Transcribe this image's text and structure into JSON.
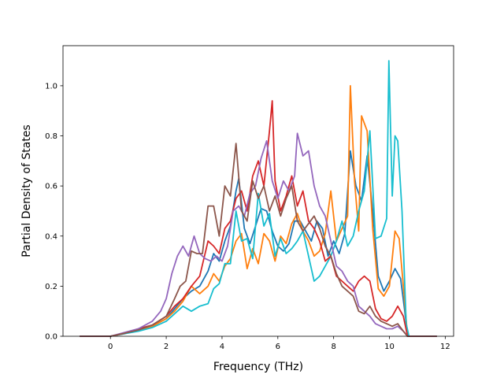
{
  "chart_data": {
    "type": "line",
    "title": "",
    "xlabel": "Frequency (THz)",
    "ylabel": "Partial Density of States",
    "xlim": [
      -1.7,
      12.3
    ],
    "ylim": [
      0.0,
      1.16
    ],
    "xticks": [
      0,
      2,
      4,
      6,
      8,
      10,
      12
    ],
    "xtick_labels": [
      "0",
      "2",
      "4",
      "6",
      "8",
      "10",
      "12"
    ],
    "yticks": [
      0.0,
      0.2,
      0.4,
      0.6,
      0.8,
      1.0
    ],
    "ytick_labels": [
      "0.0",
      "0.2",
      "0.4",
      "0.6",
      "0.8",
      "1.0"
    ],
    "grid": false,
    "legend": "none",
    "series": [
      {
        "color": "#1f77b4",
        "points": [
          [
            -1.1,
            0
          ],
          [
            0,
            0
          ],
          [
            0.5,
            0.01
          ],
          [
            1,
            0.025
          ],
          [
            1.5,
            0.04
          ],
          [
            2,
            0.07
          ],
          [
            2.3,
            0.11
          ],
          [
            2.6,
            0.15
          ],
          [
            2.9,
            0.18
          ],
          [
            3.2,
            0.2
          ],
          [
            3.5,
            0.26
          ],
          [
            3.7,
            0.33
          ],
          [
            3.9,
            0.3
          ],
          [
            4.1,
            0.38
          ],
          [
            4.3,
            0.44
          ],
          [
            4.5,
            0.58
          ],
          [
            4.6,
            0.63
          ],
          [
            4.8,
            0.43
          ],
          [
            5.0,
            0.37
          ],
          [
            5.2,
            0.44
          ],
          [
            5.4,
            0.51
          ],
          [
            5.6,
            0.5
          ],
          [
            5.8,
            0.42
          ],
          [
            6.0,
            0.36
          ],
          [
            6.2,
            0.34
          ],
          [
            6.4,
            0.37
          ],
          [
            6.6,
            0.46
          ],
          [
            6.8,
            0.46
          ],
          [
            7.0,
            0.42
          ],
          [
            7.2,
            0.38
          ],
          [
            7.4,
            0.46
          ],
          [
            7.6,
            0.43
          ],
          [
            7.8,
            0.32
          ],
          [
            8.0,
            0.38
          ],
          [
            8.2,
            0.33
          ],
          [
            8.4,
            0.41
          ],
          [
            8.6,
            0.74
          ],
          [
            8.8,
            0.6
          ],
          [
            9.0,
            0.54
          ],
          [
            9.2,
            0.72
          ],
          [
            9.4,
            0.5
          ],
          [
            9.6,
            0.24
          ],
          [
            9.8,
            0.18
          ],
          [
            10.0,
            0.22
          ],
          [
            10.2,
            0.27
          ],
          [
            10.4,
            0.23
          ],
          [
            10.55,
            0.1
          ],
          [
            10.65,
            0.0
          ],
          [
            11.7,
            0
          ]
        ]
      },
      {
        "color": "#ff7f0e",
        "points": [
          [
            -1.1,
            0
          ],
          [
            0,
            0
          ],
          [
            0.5,
            0.01
          ],
          [
            1,
            0.025
          ],
          [
            1.5,
            0.04
          ],
          [
            2,
            0.07
          ],
          [
            2.3,
            0.1
          ],
          [
            2.6,
            0.14
          ],
          [
            2.9,
            0.2
          ],
          [
            3.2,
            0.17
          ],
          [
            3.5,
            0.2
          ],
          [
            3.7,
            0.25
          ],
          [
            3.9,
            0.22
          ],
          [
            4.1,
            0.28
          ],
          [
            4.3,
            0.31
          ],
          [
            4.5,
            0.38
          ],
          [
            4.7,
            0.41
          ],
          [
            4.9,
            0.27
          ],
          [
            5.1,
            0.35
          ],
          [
            5.3,
            0.29
          ],
          [
            5.5,
            0.41
          ],
          [
            5.7,
            0.38
          ],
          [
            5.9,
            0.3
          ],
          [
            6.1,
            0.4
          ],
          [
            6.3,
            0.37
          ],
          [
            6.5,
            0.45
          ],
          [
            6.7,
            0.49
          ],
          [
            6.9,
            0.42
          ],
          [
            7.1,
            0.38
          ],
          [
            7.3,
            0.32
          ],
          [
            7.5,
            0.34
          ],
          [
            7.7,
            0.41
          ],
          [
            7.9,
            0.58
          ],
          [
            8.1,
            0.38
          ],
          [
            8.3,
            0.43
          ],
          [
            8.5,
            0.48
          ],
          [
            8.6,
            1.0
          ],
          [
            8.75,
            0.62
          ],
          [
            8.9,
            0.42
          ],
          [
            9.0,
            0.88
          ],
          [
            9.2,
            0.82
          ],
          [
            9.4,
            0.43
          ],
          [
            9.6,
            0.19
          ],
          [
            9.8,
            0.16
          ],
          [
            10.0,
            0.2
          ],
          [
            10.2,
            0.42
          ],
          [
            10.35,
            0.39
          ],
          [
            10.5,
            0.2
          ],
          [
            10.65,
            0.0
          ],
          [
            11.7,
            0
          ]
        ]
      },
      {
        "color": "#17becf",
        "points": [
          [
            -1.1,
            0
          ],
          [
            0,
            0
          ],
          [
            0.5,
            0.01
          ],
          [
            1,
            0.02
          ],
          [
            1.5,
            0.035
          ],
          [
            2,
            0.06
          ],
          [
            2.3,
            0.09
          ],
          [
            2.6,
            0.12
          ],
          [
            2.9,
            0.1
          ],
          [
            3.2,
            0.12
          ],
          [
            3.5,
            0.13
          ],
          [
            3.7,
            0.19
          ],
          [
            3.9,
            0.21
          ],
          [
            4.1,
            0.29
          ],
          [
            4.3,
            0.29
          ],
          [
            4.5,
            0.5
          ],
          [
            4.7,
            0.38
          ],
          [
            4.9,
            0.39
          ],
          [
            5.1,
            0.31
          ],
          [
            5.3,
            0.57
          ],
          [
            5.5,
            0.44
          ],
          [
            5.7,
            0.49
          ],
          [
            5.9,
            0.32
          ],
          [
            6.1,
            0.39
          ],
          [
            6.3,
            0.33
          ],
          [
            6.5,
            0.35
          ],
          [
            6.7,
            0.38
          ],
          [
            6.9,
            0.42
          ],
          [
            7.1,
            0.32
          ],
          [
            7.3,
            0.22
          ],
          [
            7.5,
            0.24
          ],
          [
            7.7,
            0.28
          ],
          [
            7.9,
            0.32
          ],
          [
            8.1,
            0.38
          ],
          [
            8.3,
            0.46
          ],
          [
            8.5,
            0.36
          ],
          [
            8.7,
            0.4
          ],
          [
            8.9,
            0.5
          ],
          [
            9.1,
            0.58
          ],
          [
            9.3,
            0.82
          ],
          [
            9.5,
            0.39
          ],
          [
            9.7,
            0.4
          ],
          [
            9.9,
            0.47
          ],
          [
            9.98,
            1.1
          ],
          [
            10.1,
            0.56
          ],
          [
            10.2,
            0.8
          ],
          [
            10.3,
            0.78
          ],
          [
            10.45,
            0.5
          ],
          [
            10.6,
            0.05
          ],
          [
            10.7,
            0.0
          ],
          [
            11.7,
            0
          ]
        ]
      },
      {
        "color": "#d62728",
        "points": [
          [
            -1.1,
            0
          ],
          [
            0,
            0
          ],
          [
            0.5,
            0.012
          ],
          [
            1,
            0.03
          ],
          [
            1.5,
            0.045
          ],
          [
            2,
            0.08
          ],
          [
            2.3,
            0.12
          ],
          [
            2.6,
            0.15
          ],
          [
            2.9,
            0.2
          ],
          [
            3.2,
            0.24
          ],
          [
            3.5,
            0.38
          ],
          [
            3.7,
            0.36
          ],
          [
            3.9,
            0.33
          ],
          [
            4.1,
            0.43
          ],
          [
            4.3,
            0.46
          ],
          [
            4.5,
            0.55
          ],
          [
            4.7,
            0.58
          ],
          [
            4.9,
            0.5
          ],
          [
            5.1,
            0.64
          ],
          [
            5.3,
            0.7
          ],
          [
            5.5,
            0.6
          ],
          [
            5.7,
            0.82
          ],
          [
            5.8,
            0.94
          ],
          [
            5.9,
            0.62
          ],
          [
            6.1,
            0.5
          ],
          [
            6.3,
            0.56
          ],
          [
            6.5,
            0.64
          ],
          [
            6.7,
            0.52
          ],
          [
            6.9,
            0.58
          ],
          [
            7.1,
            0.46
          ],
          [
            7.3,
            0.43
          ],
          [
            7.5,
            0.38
          ],
          [
            7.7,
            0.3
          ],
          [
            7.9,
            0.32
          ],
          [
            8.1,
            0.24
          ],
          [
            8.3,
            0.22
          ],
          [
            8.5,
            0.2
          ],
          [
            8.7,
            0.18
          ],
          [
            8.9,
            0.22
          ],
          [
            9.1,
            0.24
          ],
          [
            9.3,
            0.22
          ],
          [
            9.5,
            0.11
          ],
          [
            9.7,
            0.07
          ],
          [
            9.9,
            0.06
          ],
          [
            10.1,
            0.08
          ],
          [
            10.3,
            0.12
          ],
          [
            10.5,
            0.08
          ],
          [
            10.65,
            0.0
          ],
          [
            11.7,
            0
          ]
        ]
      },
      {
        "color": "#9467bd",
        "points": [
          [
            -1.1,
            0
          ],
          [
            0,
            0
          ],
          [
            0.5,
            0.015
          ],
          [
            1,
            0.03
          ],
          [
            1.5,
            0.06
          ],
          [
            1.8,
            0.1
          ],
          [
            2.0,
            0.15
          ],
          [
            2.2,
            0.25
          ],
          [
            2.4,
            0.32
          ],
          [
            2.6,
            0.36
          ],
          [
            2.8,
            0.32
          ],
          [
            3.0,
            0.4
          ],
          [
            3.2,
            0.33
          ],
          [
            3.4,
            0.31
          ],
          [
            3.6,
            0.3
          ],
          [
            3.8,
            0.32
          ],
          [
            4.0,
            0.3
          ],
          [
            4.2,
            0.36
          ],
          [
            4.4,
            0.5
          ],
          [
            4.6,
            0.52
          ],
          [
            4.8,
            0.48
          ],
          [
            5.0,
            0.57
          ],
          [
            5.2,
            0.6
          ],
          [
            5.4,
            0.71
          ],
          [
            5.6,
            0.78
          ],
          [
            5.8,
            0.62
          ],
          [
            6.0,
            0.55
          ],
          [
            6.2,
            0.62
          ],
          [
            6.4,
            0.58
          ],
          [
            6.6,
            0.64
          ],
          [
            6.7,
            0.81
          ],
          [
            6.9,
            0.72
          ],
          [
            7.1,
            0.74
          ],
          [
            7.3,
            0.6
          ],
          [
            7.5,
            0.52
          ],
          [
            7.7,
            0.48
          ],
          [
            7.9,
            0.38
          ],
          [
            8.1,
            0.28
          ],
          [
            8.3,
            0.26
          ],
          [
            8.5,
            0.22
          ],
          [
            8.7,
            0.2
          ],
          [
            8.9,
            0.12
          ],
          [
            9.1,
            0.1
          ],
          [
            9.3,
            0.08
          ],
          [
            9.5,
            0.05
          ],
          [
            9.7,
            0.04
          ],
          [
            9.9,
            0.03
          ],
          [
            10.1,
            0.03
          ],
          [
            10.3,
            0.04
          ],
          [
            10.5,
            0.02
          ],
          [
            10.65,
            0.0
          ],
          [
            11.7,
            0
          ]
        ]
      },
      {
        "color": "#8c564b",
        "points": [
          [
            -1.1,
            0
          ],
          [
            0,
            0
          ],
          [
            0.5,
            0.012
          ],
          [
            1,
            0.025
          ],
          [
            1.5,
            0.045
          ],
          [
            2,
            0.08
          ],
          [
            2.3,
            0.15
          ],
          [
            2.5,
            0.2
          ],
          [
            2.7,
            0.22
          ],
          [
            2.9,
            0.34
          ],
          [
            3.1,
            0.33
          ],
          [
            3.3,
            0.33
          ],
          [
            3.5,
            0.52
          ],
          [
            3.7,
            0.52
          ],
          [
            3.9,
            0.4
          ],
          [
            4.1,
            0.6
          ],
          [
            4.3,
            0.56
          ],
          [
            4.5,
            0.77
          ],
          [
            4.7,
            0.5
          ],
          [
            4.9,
            0.46
          ],
          [
            5.1,
            0.62
          ],
          [
            5.3,
            0.55
          ],
          [
            5.5,
            0.6
          ],
          [
            5.7,
            0.5
          ],
          [
            5.9,
            0.56
          ],
          [
            6.1,
            0.48
          ],
          [
            6.3,
            0.55
          ],
          [
            6.5,
            0.6
          ],
          [
            6.7,
            0.46
          ],
          [
            6.9,
            0.42
          ],
          [
            7.1,
            0.45
          ],
          [
            7.3,
            0.48
          ],
          [
            7.5,
            0.43
          ],
          [
            7.7,
            0.36
          ],
          [
            7.9,
            0.32
          ],
          [
            8.1,
            0.25
          ],
          [
            8.3,
            0.2
          ],
          [
            8.5,
            0.18
          ],
          [
            8.7,
            0.16
          ],
          [
            8.9,
            0.1
          ],
          [
            9.1,
            0.09
          ],
          [
            9.3,
            0.12
          ],
          [
            9.5,
            0.08
          ],
          [
            9.7,
            0.06
          ],
          [
            9.9,
            0.05
          ],
          [
            10.1,
            0.04
          ],
          [
            10.3,
            0.05
          ],
          [
            10.5,
            0.02
          ],
          [
            10.65,
            0.0
          ],
          [
            11.7,
            0
          ]
        ]
      }
    ]
  }
}
